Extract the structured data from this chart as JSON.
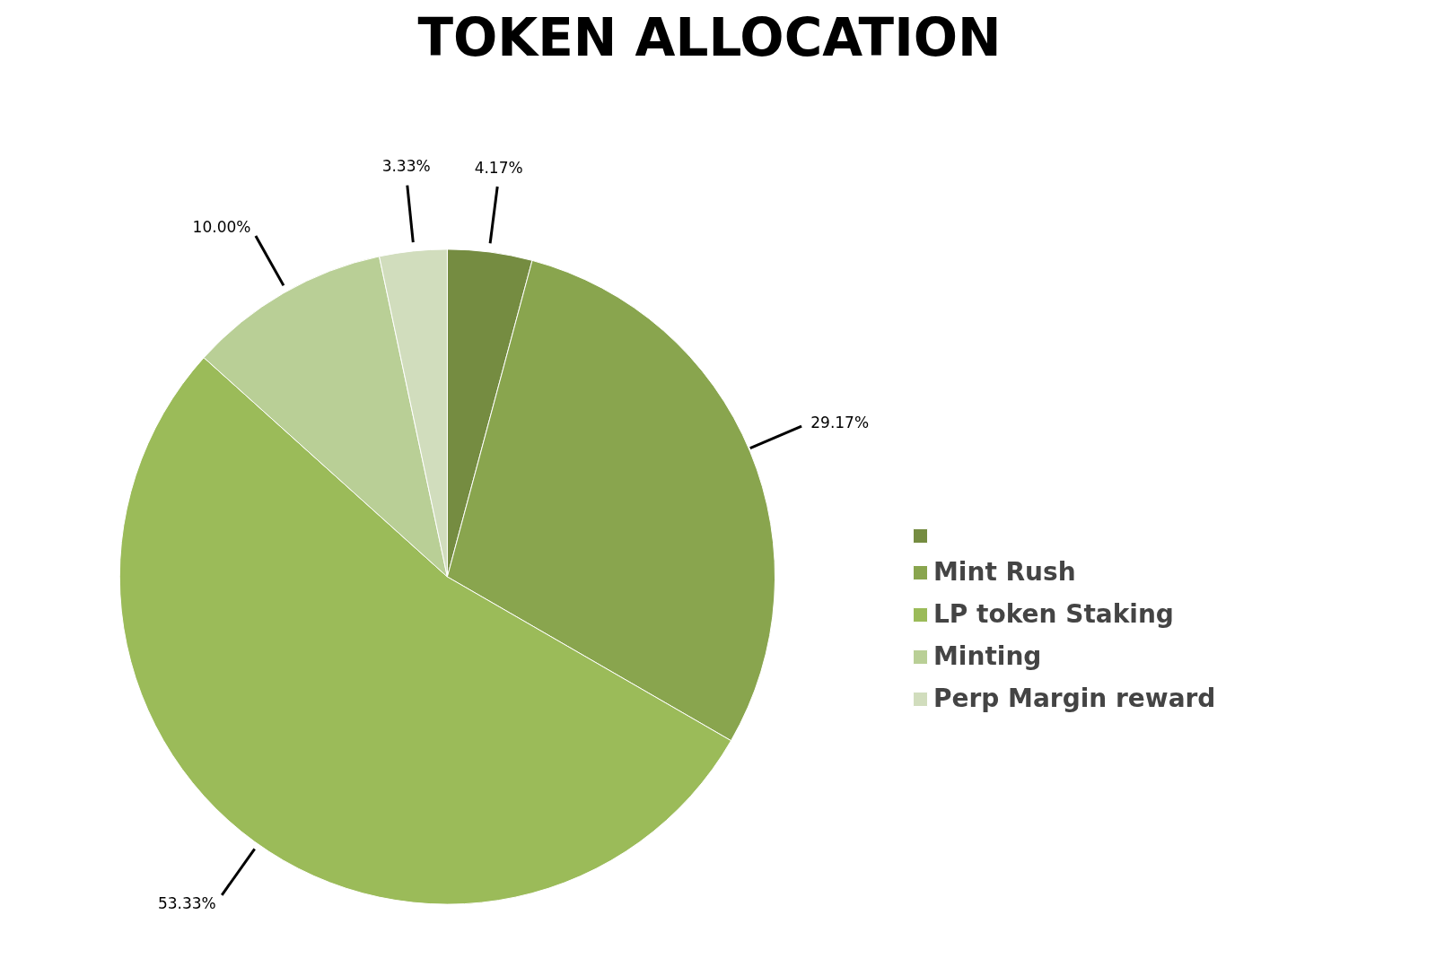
{
  "chart_data": {
    "type": "pie",
    "title": "TOKEN ALLOCATION",
    "categories": [
      null,
      "Mint Rush",
      "LP token Staking",
      "Minting",
      "Perp Margin reward"
    ],
    "values": [
      4.17,
      29.17,
      53.33,
      10.0,
      3.33
    ],
    "value_labels": [
      "4.17%",
      "29.17%",
      "53.33%",
      "10.00%",
      "3.33%"
    ],
    "colors": [
      "#758c41",
      "#89a54e",
      "#9bbb59",
      "#b9cf96",
      "#d1ddbd"
    ],
    "legend": "right"
  }
}
